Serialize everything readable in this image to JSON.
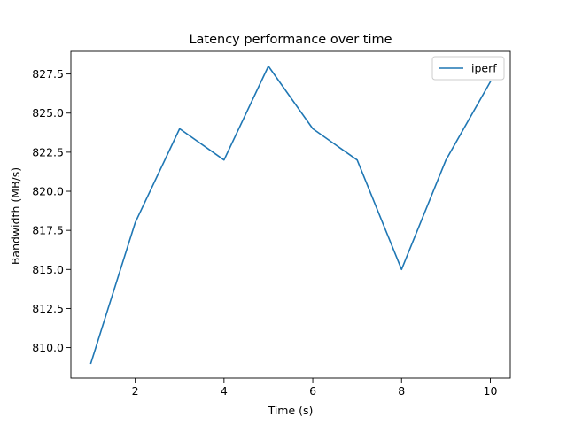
{
  "chart_data": {
    "type": "line",
    "title": "Latency performance over time",
    "xlabel": "Time (s)",
    "ylabel": "Bandwidth (MB/s)",
    "xlim": [
      0.55,
      10.45
    ],
    "ylim": [
      808.05,
      828.95
    ],
    "xticks": [
      2,
      4,
      6,
      8,
      10
    ],
    "yticks": [
      810.0,
      812.5,
      815.0,
      817.5,
      820.0,
      822.5,
      825.0,
      827.5
    ],
    "xtick_labels": [
      "2",
      "4",
      "6",
      "8",
      "10"
    ],
    "ytick_labels": [
      "810.0",
      "812.5",
      "815.0",
      "817.5",
      "820.0",
      "822.5",
      "825.0",
      "827.5"
    ],
    "grid": false,
    "legend_position": "upper right",
    "series": [
      {
        "name": "iperf",
        "color": "#1f77b4",
        "x": [
          1,
          2,
          3,
          4,
          5,
          6,
          7,
          8,
          9,
          10
        ],
        "y": [
          809,
          818,
          824,
          822,
          828,
          824,
          822,
          815,
          822,
          827
        ]
      }
    ]
  }
}
